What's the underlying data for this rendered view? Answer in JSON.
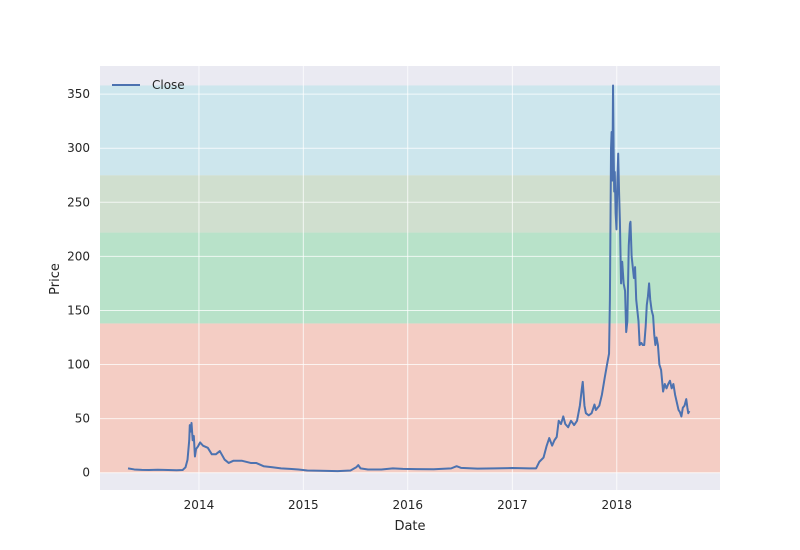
{
  "chart_data": {
    "type": "line",
    "title": "",
    "xlabel": "Date",
    "ylabel": "Price",
    "xlim": [
      "2013-01-20",
      "2018-12-28"
    ],
    "ylim": [
      -16,
      376
    ],
    "x_ticks": [
      "2014",
      "2015",
      "2016",
      "2017",
      "2018"
    ],
    "y_ticks": [
      0,
      50,
      100,
      150,
      200,
      250,
      300,
      350
    ],
    "grid": true,
    "legend": {
      "position": "top-left",
      "entries": [
        "Close"
      ]
    },
    "bands": [
      {
        "from": 0,
        "to": 138,
        "color": "#f4cdc4"
      },
      {
        "from": 138,
        "to": 222,
        "color": "#b8e2c9"
      },
      {
        "from": 222,
        "to": 275,
        "color": "#d0dfcf"
      },
      {
        "from": 275,
        "to": 358,
        "color": "#cde6ed"
      }
    ],
    "series": [
      {
        "name": "Close",
        "color": "#4c72b0",
        "points": [
          [
            "2013-04-28",
            4
          ],
          [
            "2013-05-20",
            3
          ],
          [
            "2013-06-15",
            2.6
          ],
          [
            "2013-07-10",
            2.5
          ],
          [
            "2013-08-10",
            2.7
          ],
          [
            "2013-09-15",
            2.5
          ],
          [
            "2013-10-15",
            2.3
          ],
          [
            "2013-11-05",
            2.5
          ],
          [
            "2013-11-15",
            5
          ],
          [
            "2013-11-22",
            12
          ],
          [
            "2013-11-28",
            30
          ],
          [
            "2013-11-30",
            44
          ],
          [
            "2013-12-03",
            38
          ],
          [
            "2013-12-06",
            46
          ],
          [
            "2013-12-10",
            30
          ],
          [
            "2013-12-14",
            34
          ],
          [
            "2013-12-18",
            15
          ],
          [
            "2013-12-22",
            22
          ],
          [
            "2013-12-28",
            24
          ],
          [
            "2014-01-05",
            28
          ],
          [
            "2014-01-15",
            25
          ],
          [
            "2014-02-01",
            23
          ],
          [
            "2014-02-15",
            17
          ],
          [
            "2014-03-01",
            17
          ],
          [
            "2014-03-15",
            20
          ],
          [
            "2014-04-01",
            12
          ],
          [
            "2014-04-15",
            9
          ],
          [
            "2014-05-01",
            11
          ],
          [
            "2014-05-15",
            11
          ],
          [
            "2014-06-01",
            11
          ],
          [
            "2014-07-01",
            9
          ],
          [
            "2014-07-20",
            9
          ],
          [
            "2014-08-15",
            6
          ],
          [
            "2014-09-15",
            5
          ],
          [
            "2014-10-15",
            4
          ],
          [
            "2014-11-15",
            3.5
          ],
          [
            "2014-12-15",
            3
          ],
          [
            "2015-01-15",
            2
          ],
          [
            "2015-03-01",
            1.8
          ],
          [
            "2015-05-01",
            1.5
          ],
          [
            "2015-06-15",
            2
          ],
          [
            "2015-07-05",
            5
          ],
          [
            "2015-07-12",
            7
          ],
          [
            "2015-07-20",
            4
          ],
          [
            "2015-08-15",
            3
          ],
          [
            "2015-10-01",
            3
          ],
          [
            "2015-11-10",
            4
          ],
          [
            "2015-12-15",
            3.5
          ],
          [
            "2016-02-01",
            3.3
          ],
          [
            "2016-04-01",
            3.2
          ],
          [
            "2016-06-01",
            4
          ],
          [
            "2016-06-20",
            6
          ],
          [
            "2016-07-05",
            4.5
          ],
          [
            "2016-09-01",
            3.8
          ],
          [
            "2016-11-01",
            4
          ],
          [
            "2017-01-01",
            4.3
          ],
          [
            "2017-03-01",
            4
          ],
          [
            "2017-03-25",
            4
          ],
          [
            "2017-04-05",
            10
          ],
          [
            "2017-04-20",
            14
          ],
          [
            "2017-05-01",
            25
          ],
          [
            "2017-05-10",
            32
          ],
          [
            "2017-05-20",
            25
          ],
          [
            "2017-05-28",
            30
          ],
          [
            "2017-06-05",
            33
          ],
          [
            "2017-06-12",
            48
          ],
          [
            "2017-06-20",
            45
          ],
          [
            "2017-06-28",
            52
          ],
          [
            "2017-07-05",
            45
          ],
          [
            "2017-07-15",
            42
          ],
          [
            "2017-07-25",
            48
          ],
          [
            "2017-08-05",
            44
          ],
          [
            "2017-08-15",
            48
          ],
          [
            "2017-08-25",
            62
          ],
          [
            "2017-09-01",
            78
          ],
          [
            "2017-09-04",
            84
          ],
          [
            "2017-09-10",
            62
          ],
          [
            "2017-09-15",
            55
          ],
          [
            "2017-09-25",
            53
          ],
          [
            "2017-10-05",
            55
          ],
          [
            "2017-10-15",
            63
          ],
          [
            "2017-10-20",
            58
          ],
          [
            "2017-11-01",
            62
          ],
          [
            "2017-11-10",
            72
          ],
          [
            "2017-11-20",
            88
          ],
          [
            "2017-11-28",
            100
          ],
          [
            "2017-12-05",
            110
          ],
          [
            "2017-12-08",
            160
          ],
          [
            "2017-12-12",
            300
          ],
          [
            "2017-12-14",
            315
          ],
          [
            "2017-12-16",
            270
          ],
          [
            "2017-12-18",
            320
          ],
          [
            "2017-12-19",
            358
          ],
          [
            "2017-12-21",
            300
          ],
          [
            "2017-12-23",
            260
          ],
          [
            "2017-12-25",
            278
          ],
          [
            "2017-12-28",
            240
          ],
          [
            "2017-12-31",
            225
          ],
          [
            "2018-01-03",
            268
          ],
          [
            "2018-01-06",
            295
          ],
          [
            "2018-01-09",
            260
          ],
          [
            "2018-01-12",
            232
          ],
          [
            "2018-01-16",
            175
          ],
          [
            "2018-01-20",
            195
          ],
          [
            "2018-01-25",
            175
          ],
          [
            "2018-01-30",
            168
          ],
          [
            "2018-02-03",
            130
          ],
          [
            "2018-02-07",
            140
          ],
          [
            "2018-02-12",
            210
          ],
          [
            "2018-02-16",
            230
          ],
          [
            "2018-02-18",
            232
          ],
          [
            "2018-02-22",
            200
          ],
          [
            "2018-02-26",
            190
          ],
          [
            "2018-03-02",
            180
          ],
          [
            "2018-03-06",
            190
          ],
          [
            "2018-03-10",
            160
          ],
          [
            "2018-03-14",
            150
          ],
          [
            "2018-03-18",
            140
          ],
          [
            "2018-03-22",
            118
          ],
          [
            "2018-03-28",
            120
          ],
          [
            "2018-04-02",
            118
          ],
          [
            "2018-04-07",
            118
          ],
          [
            "2018-04-12",
            135
          ],
          [
            "2018-04-16",
            155
          ],
          [
            "2018-04-20",
            163
          ],
          [
            "2018-04-24",
            175
          ],
          [
            "2018-04-28",
            160
          ],
          [
            "2018-05-03",
            150
          ],
          [
            "2018-05-08",
            145
          ],
          [
            "2018-05-12",
            128
          ],
          [
            "2018-05-16",
            118
          ],
          [
            "2018-05-20",
            125
          ],
          [
            "2018-05-25",
            118
          ],
          [
            "2018-05-30",
            100
          ],
          [
            "2018-06-05",
            95
          ],
          [
            "2018-06-12",
            75
          ],
          [
            "2018-06-18",
            82
          ],
          [
            "2018-06-24",
            78
          ],
          [
            "2018-06-30",
            82
          ],
          [
            "2018-07-06",
            85
          ],
          [
            "2018-07-12",
            78
          ],
          [
            "2018-07-18",
            82
          ],
          [
            "2018-07-24",
            72
          ],
          [
            "2018-07-30",
            65
          ],
          [
            "2018-08-05",
            58
          ],
          [
            "2018-08-10",
            56
          ],
          [
            "2018-08-15",
            52
          ],
          [
            "2018-08-20",
            60
          ],
          [
            "2018-08-26",
            62
          ],
          [
            "2018-09-01",
            68
          ],
          [
            "2018-09-05",
            60
          ],
          [
            "2018-09-08",
            55
          ],
          [
            "2018-09-12",
            57
          ]
        ]
      }
    ]
  }
}
